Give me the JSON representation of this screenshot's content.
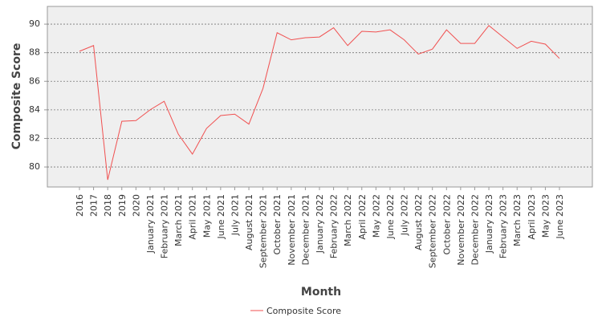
{
  "chart_data": {
    "type": "line",
    "x_label": "Month",
    "y_label": "Composite Score",
    "categories": [
      "2016",
      "2017",
      "2018",
      "2019",
      "2020",
      "January 2021",
      "February 2021",
      "March 2021",
      "April 2021",
      "May 2021",
      "June 2021",
      "July 2021",
      "August 2021",
      "September 2021",
      "October 2021",
      "November 2021",
      "December 2021",
      "January 2022",
      "February 2022",
      "March 2022",
      "April 2022",
      "May 2022",
      "June 2022",
      "July 2022",
      "August 2022",
      "September 2022",
      "October 2022",
      "November 2022",
      "December 2022",
      "January 2023",
      "February 2023",
      "March 2023",
      "April 2023",
      "May 2023",
      "June 2023"
    ],
    "series": [
      {
        "name": "Composite Score",
        "color": "#f05050",
        "values": [
          88.1,
          88.5,
          79.1,
          83.2,
          83.25,
          84.0,
          84.6,
          82.3,
          80.9,
          82.7,
          83.6,
          83.7,
          83.0,
          85.5,
          89.4,
          88.9,
          89.05,
          89.1,
          89.75,
          88.5,
          89.5,
          89.45,
          89.6,
          88.9,
          87.9,
          88.25,
          89.6,
          88.65,
          88.65,
          89.9,
          89.1,
          88.3,
          88.8,
          88.6,
          87.6
        ]
      }
    ],
    "ylim": [
      78.6,
      91.24
    ],
    "yticks": [
      80,
      82,
      84,
      86,
      88,
      90
    ],
    "grid": true,
    "legend": "bottom"
  }
}
